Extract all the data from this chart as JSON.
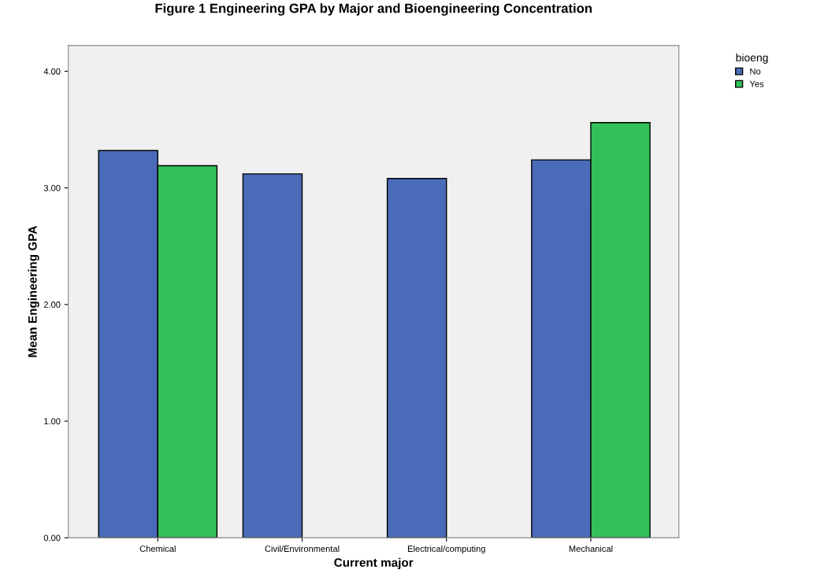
{
  "chart_data": {
    "type": "bar",
    "title": "Figure 1 Engineering GPA by Major and Bioengineering Concentration",
    "xlabel": "Current major",
    "ylabel": "Mean Engineering GPA",
    "legend_title": "bioeng",
    "categories": [
      "Chemical",
      "Civil/Environmental",
      "Electrical/computing",
      "Mechanical"
    ],
    "series": [
      {
        "name": "No",
        "color": "#4a6bb8",
        "values": [
          3.32,
          3.12,
          3.08,
          3.24
        ]
      },
      {
        "name": "Yes",
        "color": "#33c05a",
        "values": [
          3.19,
          null,
          null,
          3.56
        ]
      }
    ],
    "ylim": [
      0,
      4.22
    ],
    "yticks": [
      {
        "value": 0,
        "label": "0.00"
      },
      {
        "value": 1,
        "label": "1.00"
      },
      {
        "value": 2,
        "label": "2.00"
      },
      {
        "value": 3,
        "label": "3.00"
      },
      {
        "value": 4,
        "label": "4.00"
      }
    ],
    "grid": false,
    "legend": "top right"
  }
}
